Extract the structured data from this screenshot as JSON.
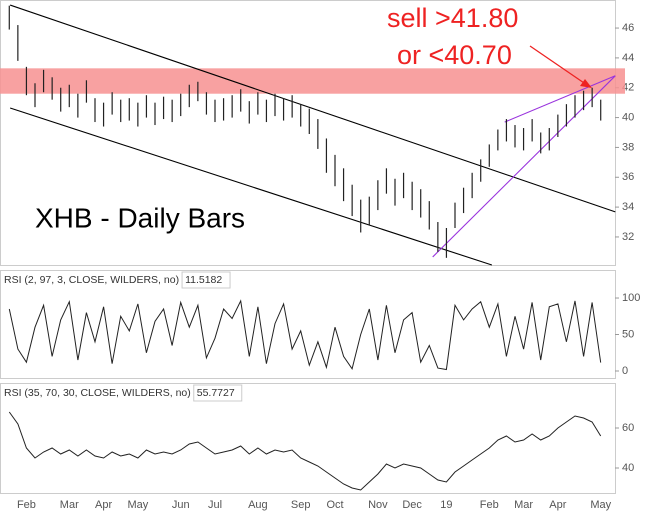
{
  "chart_data": [
    {
      "type": "range_bar",
      "title": "XHB - Daily Bars",
      "color": "#222",
      "annotations": [
        "sell >41.80",
        "or <40.70"
      ],
      "annotation_color": "#ee2222",
      "high": [
        47.5,
        46.2,
        43.4,
        42.3,
        43.2,
        42.7,
        42.0,
        42.2,
        41.6,
        42.5,
        41.3,
        41.0,
        41.7,
        41.2,
        41.3,
        41.0,
        41.5,
        41.0,
        41.4,
        41.2,
        41.6,
        42.2,
        42.4,
        41.7,
        41.2,
        41.3,
        41.5,
        41.9,
        41.1,
        41.7,
        41.2,
        41.6,
        41.3,
        41.5,
        40.9,
        40.6,
        39.9,
        38.6,
        37.5,
        36.6,
        35.5,
        34.5,
        34.7,
        35.8,
        36.6,
        35.9,
        36.3,
        35.7,
        35.2,
        34.4,
        33.0,
        32.6,
        34.3,
        35.3,
        36.3,
        37.2,
        38.2,
        39.2,
        39.9,
        39.5,
        39.3,
        39.9,
        39.0,
        39.3,
        40.2,
        40.9,
        41.5,
        41.8,
        42.0,
        41.2
      ],
      "low": [
        45.9,
        43.8,
        41.5,
        40.7,
        41.7,
        41.2,
        40.4,
        40.7,
        40.0,
        41.0,
        39.7,
        39.4,
        40.2,
        39.7,
        39.8,
        39.4,
        40.0,
        39.5,
        39.9,
        39.7,
        40.1,
        40.7,
        41.1,
        40.2,
        39.7,
        39.8,
        40.0,
        40.4,
        39.6,
        40.2,
        39.7,
        40.1,
        39.8,
        40.0,
        39.4,
        38.9,
        37.9,
        36.3,
        35.4,
        34.4,
        33.4,
        32.3,
        32.8,
        33.8,
        34.9,
        34.1,
        34.6,
        33.8,
        33.3,
        32.5,
        31.0,
        30.6,
        32.6,
        33.6,
        34.6,
        35.7,
        36.7,
        37.8,
        38.4,
        38.0,
        37.8,
        38.4,
        37.6,
        37.8,
        38.7,
        39.4,
        40.0,
        40.5,
        40.7,
        39.8
      ],
      "band": [
        41.6,
        43.3
      ],
      "band_color": "#f79090",
      "lines": [
        {
          "from": [
            0.1,
            47.54
          ],
          "to": [
            70.7,
            33.68
          ],
          "color": "#000000"
        },
        {
          "from": [
            0.1,
            40.64
          ],
          "to": [
            56.3,
            30.12
          ],
          "color": "#000000"
        },
        {
          "from": [
            49.4,
            30.66
          ],
          "to": [
            70.7,
            42.8
          ],
          "color": "#9933dd"
        },
        {
          "from": [
            57.8,
            39.7
          ],
          "to": [
            70.7,
            42.8
          ],
          "color": "#9933dd"
        }
      ],
      "ylim": [
        30.12,
        47.88
      ],
      "yticks": [
        32,
        34,
        36,
        38,
        40,
        42,
        44,
        46
      ]
    },
    {
      "type": "line",
      "title": "RSI (2, 97, 3, CLOSE, WILDERS, no)",
      "last": 11.5182,
      "color": "#222",
      "values": [
        85,
        30,
        12,
        60,
        90,
        20,
        70,
        95,
        15,
        80,
        40,
        88,
        10,
        75,
        55,
        92,
        25,
        68,
        85,
        35,
        94,
        60,
        90,
        18,
        45,
        85,
        72,
        96,
        20,
        88,
        10,
        65,
        92,
        30,
        55,
        8,
        40,
        5,
        60,
        20,
        3,
        50,
        85,
        15,
        90,
        25,
        70,
        80,
        12,
        35,
        4,
        2,
        90,
        70,
        85,
        95,
        60,
        92,
        20,
        75,
        30,
        94,
        15,
        88,
        92,
        40,
        96,
        20,
        94,
        11.5
      ],
      "ylim": [
        -9.6,
        138.4
      ],
      "yticks": [
        0,
        50,
        100
      ]
    },
    {
      "type": "line",
      "title": "RSI (35, 70, 30, CLOSE, WILDERS, no)",
      "last": 55.7727,
      "color": "#222",
      "values": [
        68,
        62,
        50,
        45,
        48,
        50,
        47,
        49,
        46,
        49,
        46,
        45,
        48,
        46,
        47,
        45,
        49,
        47,
        48,
        47,
        49,
        52,
        53,
        50,
        47,
        48,
        49,
        51,
        47,
        50,
        47,
        49,
        48,
        49,
        45,
        43,
        41,
        38,
        35,
        32,
        30,
        29,
        33,
        37,
        42,
        40,
        42,
        41,
        40,
        37,
        34,
        33,
        38,
        41,
        44,
        47,
        50,
        54,
        56,
        53,
        54,
        57,
        54,
        56,
        60,
        63,
        66,
        65,
        63,
        56
      ],
      "ylim": [
        27.5,
        82.5
      ],
      "yticks": [
        40,
        60
      ],
      "categories": [
        null,
        null,
        "Feb",
        null,
        null,
        null,
        null,
        "Mar",
        null,
        null,
        null,
        "Apr",
        null,
        null,
        null,
        "May",
        null,
        null,
        null,
        null,
        "Jun",
        null,
        null,
        null,
        "Jul",
        null,
        null,
        null,
        null,
        "Aug",
        null,
        null,
        null,
        null,
        "Sep",
        null,
        null,
        null,
        "Oct",
        null,
        null,
        null,
        null,
        "Nov",
        null,
        null,
        null,
        "Dec",
        null,
        null,
        null,
        "19",
        null,
        null,
        null,
        null,
        "Feb",
        null,
        null,
        null,
        "Mar",
        null,
        null,
        null,
        "Apr",
        null,
        null,
        null,
        null,
        "May"
      ]
    }
  ]
}
